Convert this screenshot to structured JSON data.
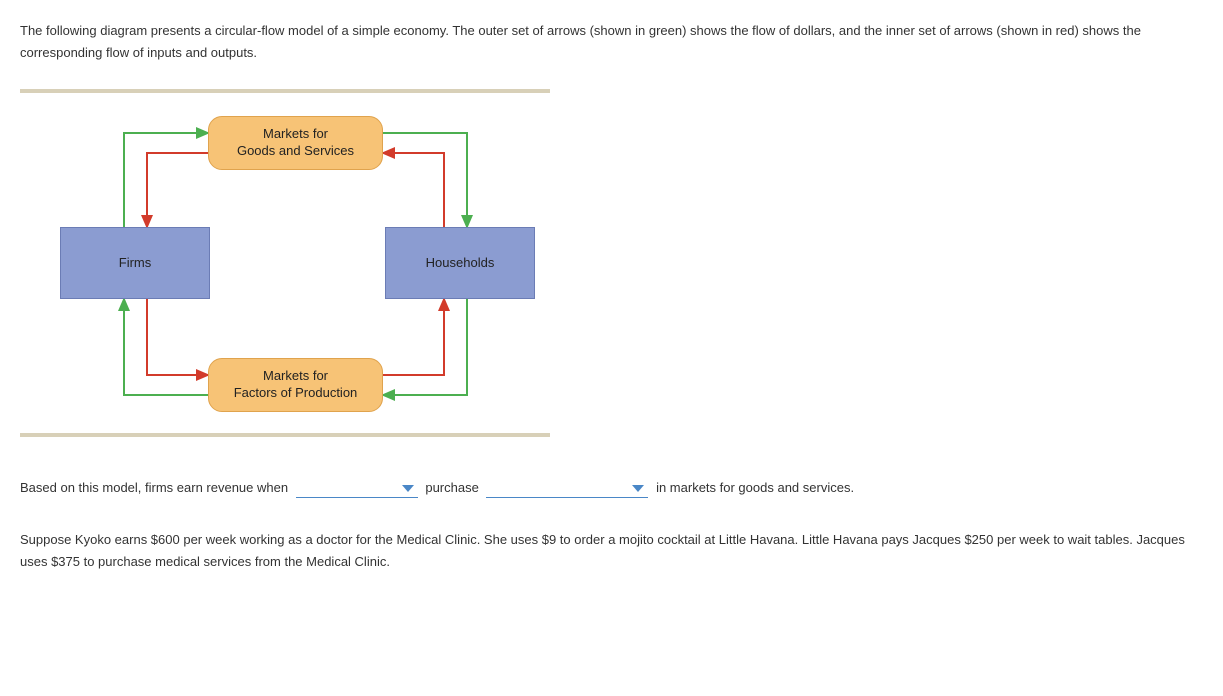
{
  "intro": "The following diagram presents a circular-flow model of a simple economy. The outer set of arrows (shown in green) shows the flow of dollars, and the inner set of arrows (shown in red) shows the corresponding flow of inputs and outputs.",
  "diagram": {
    "nodes": {
      "top_market": "Markets for\nGoods and Services",
      "bottom_market": "Markets for\nFactors of Production",
      "left_actor": "Firms",
      "right_actor": "Households"
    },
    "colors": {
      "outer_flow": "#4caf50",
      "inner_flow": "#d23b2b",
      "market_fill": "#f7c376",
      "actor_fill": "#8b9cd1",
      "frame_hr": "#d8d0b8"
    }
  },
  "question1": {
    "prefix": "Based on this model, firms earn revenue when",
    "mid": "purchase",
    "suffix": "in markets for goods and services."
  },
  "paragraph": "Suppose Kyoko earns $600 per week working as a doctor for the Medical Clinic. She uses $9 to order a mojito cocktail at Little Havana. Little Havana pays Jacques $250 per week to wait tables. Jacques uses $375 to purchase medical services from the Medical Clinic."
}
